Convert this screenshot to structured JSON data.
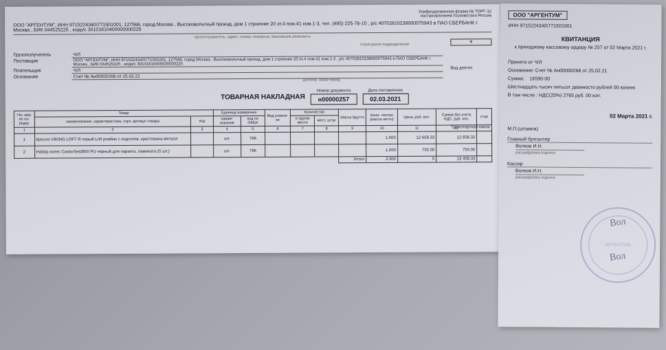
{
  "left": {
    "form_note": "Унифицированная форма № ТОРГ-12\nпостановлением Госкомстата России",
    "org_line": "ООО \"АРГЕНТУМ\", ИНН 9715224340\\771501001, 127566, город Москва , Высоковольтный проезд, дом 1 строение 20 эт.4 пом.41 ком.1-3, тел. (495) 225-76-10 , р/с 40702810238000075943 в ПАО СБЕРБАНК г. Москва , БИК 044525225 , корр/с 30101810400000000225",
    "sub_org": "грузоотправитель, адрес, номер телефона, банковские реквизиты",
    "sub_struct": "структурное подразделение",
    "right_labels": {
      "vid": "Вид деятел",
      "trans": "Транспортная накла"
    },
    "fields": {
      "gruzo_label": "Грузополучатель",
      "gruzo_val": "Ч/Л",
      "post_label": "Поставщик",
      "post_val": "ООО \"АРГЕНТУМ\", ИНН 9715224340\\771501001, 127566, город Москва , Высоковольтный проезд, дом 1 строение 20 эт.4 пом.41 ком.1-3 , р/с 40702810238000075943 в ПАО СБЕРБАНК г. Москва , БИК 044525225 , корр/с 30101810400000000225",
      "plat_label": "Плательщик",
      "plat_val": "Ч/Л",
      "osn_label": "Основание",
      "osn_val": "Счет № Ан00000268 от 25.02.21",
      "osn_sub": "договор, заказ-наряд"
    },
    "title": "ТОВАРНАЯ НАКЛАДНАЯ",
    "doc_num_hdr": "Номер документа",
    "doc_num": "н00000257",
    "doc_date_hdr": "Дата составления",
    "doc_date": "02.03.2021",
    "table": {
      "headers": {
        "num": "Но-\nмер\nпо по-\nрядку",
        "goods": "Товар",
        "goods_name": "наименование, характеристика, сорт, артикул товара",
        "goods_code": "код",
        "unit": "Единица измерения",
        "unit_name": "наиме-\nнование",
        "unit_code": "код по ОКЕИ",
        "pack": "Вид упаков-\nки",
        "qty": "Количество",
        "qty_in": "в одном месте",
        "qty_places": "мест, штук",
        "mass": "Масса брутто",
        "qty_net": "Коли-\nчество (масса нетто)",
        "price": "Цена, руб. коп.",
        "sum": "Сумма без учета НДС, руб. коп.",
        "rate": "став"
      },
      "numrow": [
        "1",
        "2",
        "3",
        "4",
        "5",
        "6",
        "7",
        "8",
        "9",
        "10",
        "11",
        "12",
        ""
      ],
      "rows": [
        {
          "n": "1",
          "name": "Кресло VIKING LOFT R серый Loft ромбик с подголов. крестовина металл",
          "code": "",
          "unit": "шт.",
          "ucode": "796",
          "pack": "",
          "qin": "",
          "qp": "",
          "mass": "",
          "qnet": "1.000",
          "price": "12 658.33",
          "sum": "12 658.33",
          "rate": ""
        },
        {
          "n": "2",
          "name": "Набор колес CastorSet3850 PU черный для паркета, ламината (5 шт.)",
          "code": "",
          "unit": "шт.",
          "ucode": "796",
          "pack": "",
          "qin": "",
          "qp": "",
          "mass": "",
          "qnet": "1.000",
          "price": "750.00",
          "sum": "750.00",
          "rate": ""
        }
      ],
      "total_label": "Итого",
      "total_qnet": "2.000",
      "total_price": "X",
      "total_sum": "13 408.33"
    }
  },
  "right": {
    "org": "ООО \"АРГЕНТУМ\"",
    "inn": "ИНН 9715224340\\771501001",
    "title": "КВИТАНЦИЯ",
    "sub": "к приходному кассовому ордеру № 257 от 02 Марта 2021 г.",
    "from": "Принято от Ч/Л",
    "osn": "Основание: Счет № Ан00000268 от 25.02.21",
    "sum_label": "Сумма:",
    "sum_val": "16590-00",
    "sum_words": "Шестнадцать тысяч пятьсот девяносто рублей 00 копеек",
    "vat": "В том числе : НДС(20%) 2765 руб. 00 коп.",
    "date": "02 Марта 2021 г.",
    "stamp_label": "М.П.(штампа)",
    "acc_label": "Главный бухгалтер",
    "acc_name": "Волков И.Н.",
    "sig_note": "расшифровка подписи",
    "cashier_label": "Кассир",
    "cashier_name": "Волков И.Н.",
    "stamp_text": "АРГЕНТУМ"
  }
}
